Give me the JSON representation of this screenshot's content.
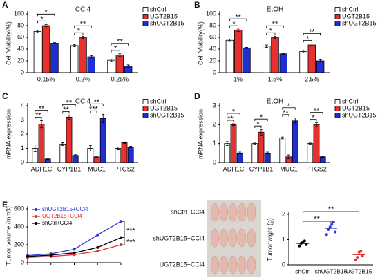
{
  "chart_data": [
    {
      "type": "bar",
      "panel": "A",
      "title": "CCl4",
      "ylabel": "Cell Viability(%)",
      "categories": [
        "0.15%",
        "0.2%",
        "0.25%"
      ],
      "ylim": [
        0,
        100
      ],
      "yticks": [
        0,
        20,
        40,
        60,
        80,
        100
      ],
      "series": [
        {
          "name": "shCtrl",
          "color": "#ffffff",
          "values": [
            70,
            46,
            21
          ],
          "errors": [
            2,
            2,
            2
          ]
        },
        {
          "name": "UGT2B15",
          "color": "#e8312f",
          "values": [
            80,
            60,
            30
          ],
          "errors": [
            2,
            2,
            2
          ]
        },
        {
          "name": "shUGT2B15",
          "color": "#1f2fd6",
          "values": [
            50,
            27,
            11
          ],
          "errors": [
            1,
            2,
            2
          ]
        }
      ],
      "annotations": [
        "*",
        "*",
        "*",
        "**",
        "*",
        "**"
      ]
    },
    {
      "type": "bar",
      "panel": "B",
      "title": "EtOH",
      "ylabel": "Cell Viability(%)",
      "categories": [
        "1%",
        "1.5%",
        "2.5%"
      ],
      "ylim": [
        0,
        100
      ],
      "yticks": [
        0,
        20,
        40,
        60,
        80,
        100
      ],
      "series": [
        {
          "name": "shCtrl",
          "color": "#ffffff",
          "values": [
            55,
            45,
            36
          ],
          "errors": [
            2,
            2,
            2
          ]
        },
        {
          "name": "UGT2B15",
          "color": "#e8312f",
          "values": [
            72,
            60,
            47
          ],
          "errors": [
            2,
            2,
            2
          ]
        },
        {
          "name": "shUGT2B15",
          "color": "#1f2fd6",
          "values": [
            42,
            32,
            20
          ],
          "errors": [
            1,
            1,
            2
          ]
        }
      ],
      "annotations": [
        "*",
        "**",
        "*",
        "**",
        "*",
        "**"
      ]
    },
    {
      "type": "bar",
      "panel": "C",
      "title": "CCl4",
      "ylabel": "mRNA expression",
      "categories": [
        "ADH1C",
        "CYP1B1",
        "MUC1",
        "PTGS2"
      ],
      "ylim": [
        0,
        4
      ],
      "yticks": [
        0,
        1,
        2,
        3,
        4
      ],
      "series": [
        {
          "name": "shCtrl",
          "color": "#ffffff",
          "values": [
            1.0,
            1.3,
            1.0,
            1.0
          ],
          "errors": [
            0.25,
            0.1,
            0.2,
            0.1
          ]
        },
        {
          "name": "UGT2B15",
          "color": "#e8312f",
          "values": [
            2.7,
            3.2,
            0.4,
            1.4
          ],
          "errors": [
            0.25,
            0.15,
            0.05,
            0.05
          ]
        },
        {
          "name": "shUGT2B15",
          "color": "#1f2fd6",
          "values": [
            0.25,
            0.5,
            3.1,
            1.1
          ],
          "errors": [
            0.05,
            0.05,
            0.3,
            0.05
          ]
        }
      ],
      "annotations": [
        "**",
        "**",
        "**",
        "**",
        "***",
        "**"
      ]
    },
    {
      "type": "bar",
      "panel": "D",
      "title": "EtOH",
      "ylabel": "mRNA expression",
      "categories": [
        "ADH1C",
        "CYP1B1",
        "MUC1",
        "PTGS2"
      ],
      "ylim": [
        0,
        3
      ],
      "yticks": [
        0,
        1,
        2,
        3
      ],
      "series": [
        {
          "name": "shCtrl",
          "color": "#ffffff",
          "values": [
            1.0,
            1.0,
            1.3,
            1.0
          ],
          "errors": [
            0.1,
            0.03,
            0.05,
            0.03
          ]
        },
        {
          "name": "UGT2B15",
          "color": "#e8312f",
          "values": [
            2.0,
            1.6,
            0.3,
            2.0
          ],
          "errors": [
            0.05,
            0.15,
            0.1,
            0.1
          ]
        },
        {
          "name": "shUGT2B15",
          "color": "#1f2fd6",
          "values": [
            0.5,
            0.5,
            2.2,
            0.3
          ],
          "errors": [
            0.05,
            0.05,
            0.15,
            0.03
          ]
        }
      ],
      "annotations": [
        "**",
        "*",
        "*",
        "*",
        "**",
        "*",
        "*",
        "**"
      ]
    },
    {
      "type": "line",
      "panel": "E",
      "ylabel": "Tumor volume (mm3)",
      "categories": [
        null,
        null,
        null,
        null,
        null
      ],
      "ylim": [
        0,
        600
      ],
      "yticks": [
        0,
        200,
        400,
        600
      ],
      "series": [
        {
          "name": "shUGT2B15+CCl4",
          "color": "#2b35d8",
          "values": [
            80,
            100,
            150,
            310,
            460
          ]
        },
        {
          "name": "UGT2B15+CCl4",
          "color": "#e8312f",
          "values": [
            60,
            70,
            90,
            130,
            200
          ]
        },
        {
          "name": "shCtrl+CCl4",
          "color": "#000000",
          "values": [
            70,
            85,
            110,
            170,
            280
          ]
        }
      ],
      "annotations": [
        "***",
        "***"
      ]
    },
    {
      "type": "dot",
      "ylabel": "Tumor wight (g)",
      "categories": [
        "shCtrl",
        "shUGT2B15",
        "UGT2B15"
      ],
      "ylim": [
        0,
        2
      ],
      "yticks": [
        0,
        1,
        2
      ],
      "colors": [
        "#000000",
        "#2b35d8",
        "#e8312f"
      ],
      "points": [
        [
          0.75,
          0.85,
          0.9,
          0.95,
          0.8
        ],
        [
          1.2,
          1.4,
          1.5,
          1.6,
          1.7,
          1.3
        ],
        [
          0.2,
          0.3,
          0.5,
          0.55,
          0.35
        ]
      ],
      "means": [
        0.85,
        1.45,
        0.4
      ],
      "annotations": [
        "**",
        "**"
      ]
    }
  ],
  "photo": {
    "labels": [
      "shCtrl+CCl4",
      "shUGT2B15+CCl4",
      "UGT2B15+CCl4"
    ]
  }
}
